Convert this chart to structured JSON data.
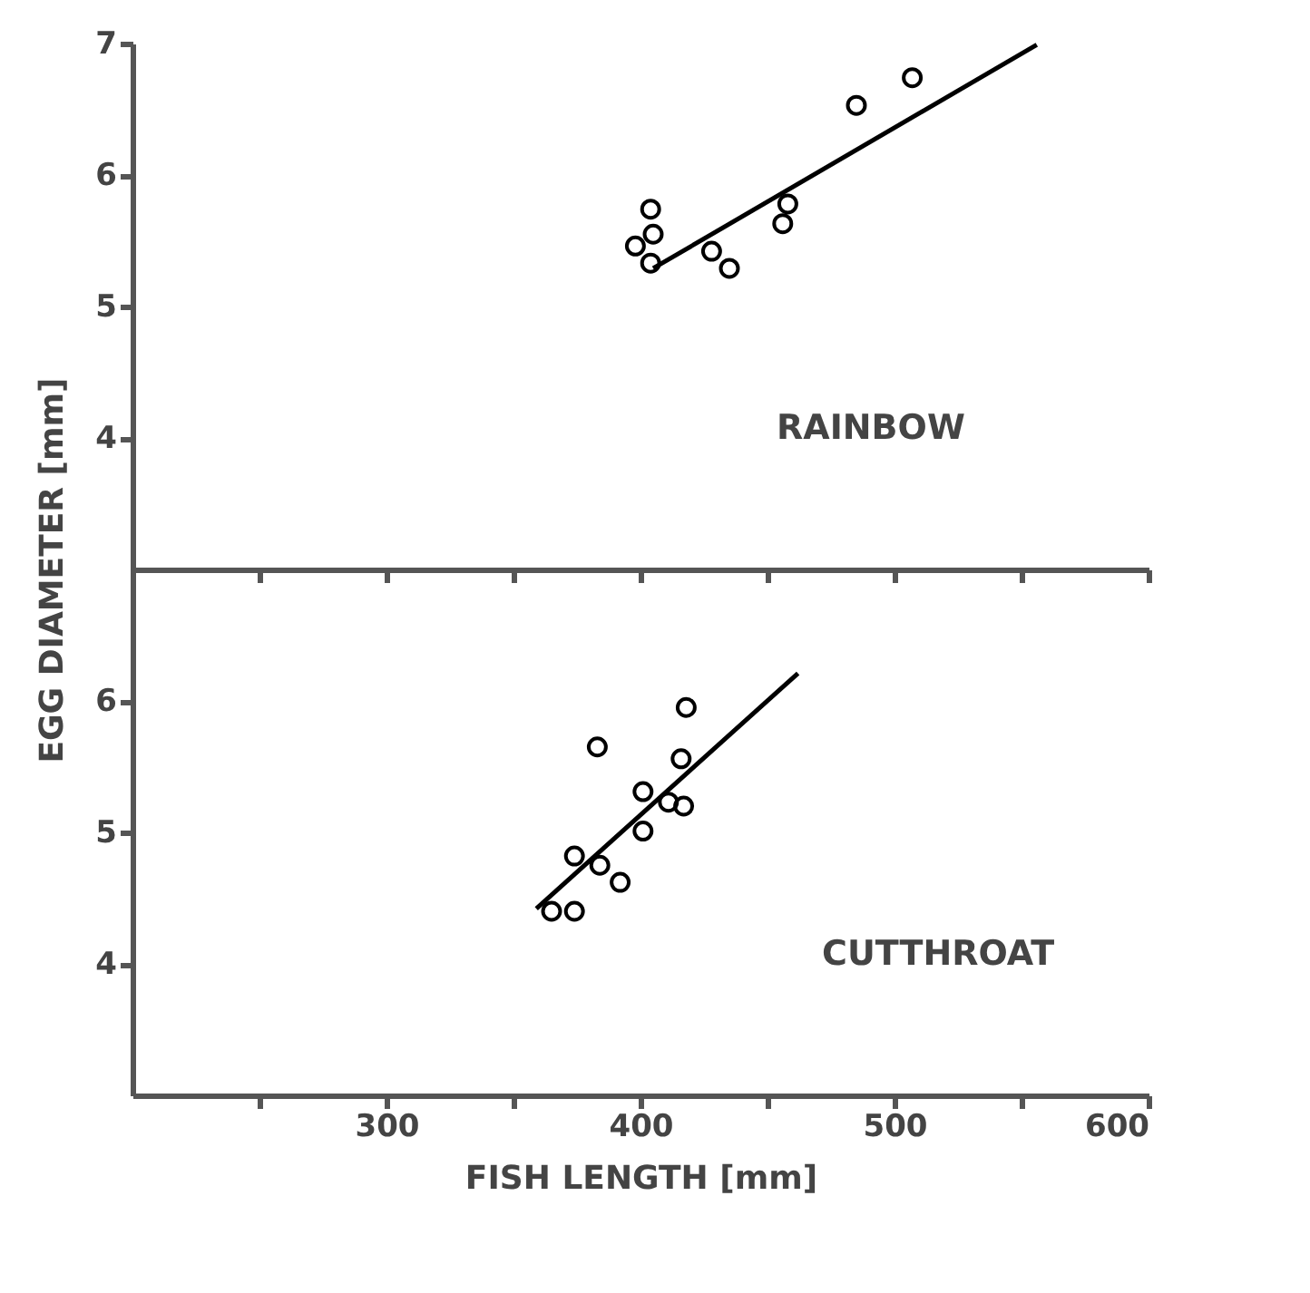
{
  "chart_data": [
    {
      "type": "scatter",
      "marker": "circle",
      "grid": false,
      "tick_labels": "y",
      "xlim": [
        200,
        600
      ],
      "ylim": [
        3,
        7
      ],
      "xticks": [
        {
          "value": 250,
          "label": null
        },
        300,
        {
          "value": 350,
          "label": null
        },
        400,
        {
          "value": 450,
          "label": null
        },
        500,
        {
          "value": 550,
          "label": null
        },
        600
      ],
      "yticks": [
        4,
        5,
        6,
        7
      ],
      "annotations": [
        "RAINBOW"
      ],
      "series": [
        {
          "type": "scatter",
          "color": "#000000",
          "x": [
            404,
            405,
            398,
            404,
            428,
            435,
            458,
            456,
            485,
            507
          ],
          "values": [
            5.74,
            5.55,
            5.46,
            5.33,
            5.42,
            5.29,
            5.78,
            5.63,
            6.53,
            6.74
          ]
        },
        {
          "type": "line",
          "marker": "none",
          "color": "#000000",
          "x": [
            405,
            556
          ],
          "values": [
            5.29,
            6.99
          ]
        }
      ]
    },
    {
      "type": "scatter",
      "marker": "circle",
      "grid": false,
      "xlabel": "FISH LENGTH [mm]",
      "ylabel": "EGG DIAMETER [mm]",
      "xlim": [
        200,
        600
      ],
      "ylim": [
        3,
        7
      ],
      "xticks": [
        {
          "value": 250,
          "label": null
        },
        300,
        {
          "value": 350,
          "label": null
        },
        400,
        {
          "value": 450,
          "label": null
        },
        500,
        {
          "value": 550,
          "label": null
        },
        600
      ],
      "yticks": [
        4,
        5,
        6
      ],
      "annotations": [
        "CUTTHROAT"
      ],
      "series": [
        {
          "type": "scatter",
          "color": "#000000",
          "x": [
            418,
            383,
            416,
            401,
            417,
            411,
            401,
            374,
            384,
            392,
            365,
            374
          ],
          "values": [
            5.95,
            5.65,
            5.56,
            5.31,
            5.2,
            5.23,
            5.01,
            4.82,
            4.75,
            4.62,
            4.4,
            4.4
          ]
        },
        {
          "type": "line",
          "marker": "none",
          "color": "#000000",
          "x": [
            359,
            462
          ],
          "values": [
            4.42,
            6.21
          ]
        }
      ]
    }
  ]
}
